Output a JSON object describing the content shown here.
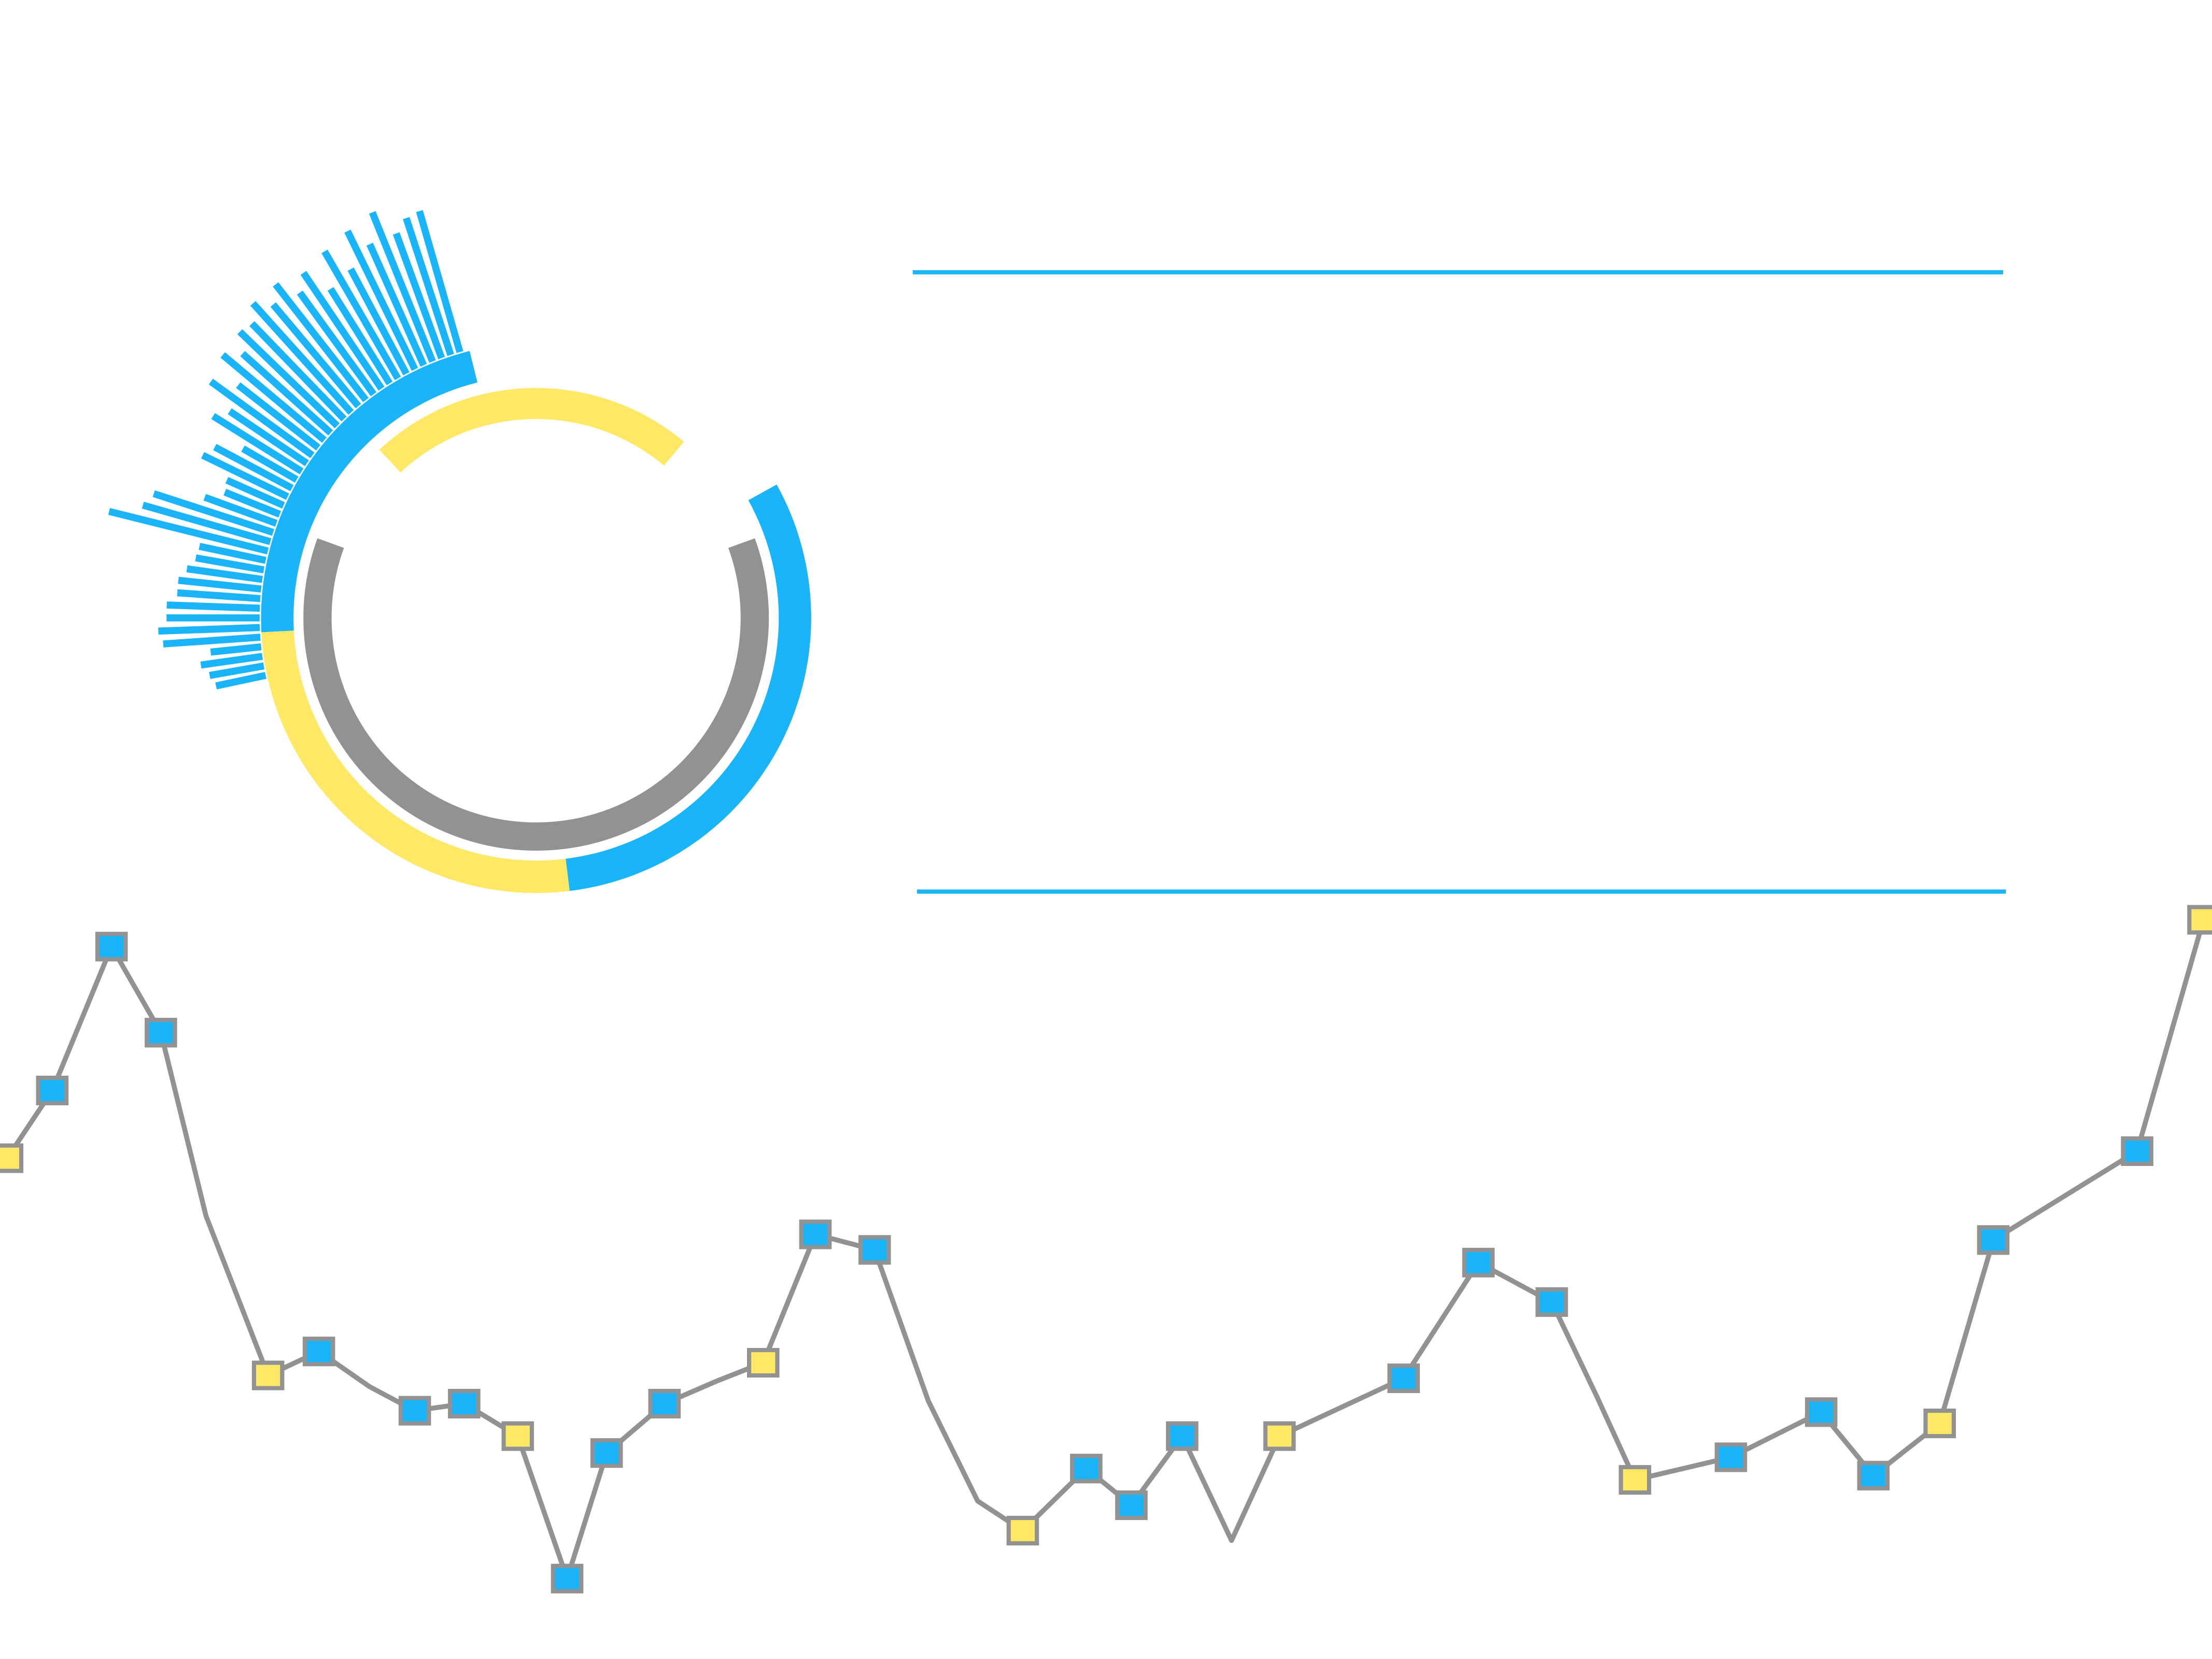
{
  "chart_data": [
    {
      "type": "radial-bar",
      "color": "#1ab4fa",
      "values": [
        36,
        39,
        44,
        36,
        69,
        72,
        66,
        66,
        59,
        59,
        54,
        49,
        48,
        116,
        94,
        89,
        54,
        42,
        44,
        67,
        62,
        44,
        74,
        66,
        89,
        72,
        94,
        84,
        96,
        94,
        104,
        94,
        104,
        89,
        99,
        79,
        104,
        84,
        109,
        94,
        114,
        94,
        102,
        104
      ]
    },
    {
      "type": "arcs",
      "series": [
        {
          "color": "#1ab4fa",
          "from": 104,
          "to": 183,
          "ring": "outer"
        },
        {
          "color": "#ffe866",
          "from": 183,
          "to": 277,
          "ring": "outer"
        },
        {
          "color": "#1ab4fa",
          "from": 277,
          "to": 389,
          "ring": "outer"
        },
        {
          "color": "#ffe866",
          "from": 50,
          "to": 133,
          "ring": "inner"
        },
        {
          "color": "#929292",
          "from": 160,
          "to": 380,
          "ring": "middle"
        }
      ]
    },
    {
      "type": "line",
      "color": "#929292",
      "x": [
        5,
        37,
        79,
        114,
        146,
        190,
        226,
        262,
        294,
        329,
        367,
        402,
        430,
        471,
        508,
        541,
        578,
        620,
        658,
        693,
        725,
        770,
        802,
        838,
        873,
        907,
        995,
        1048,
        1100,
        1132,
        1159,
        1227,
        1291,
        1328,
        1375,
        1413,
        1515,
        1562
      ],
      "values": [
        355,
        403,
        505,
        444,
        314,
        201,
        218,
        193,
        176,
        181,
        158,
        57,
        146,
        181,
        197,
        210,
        301,
        290,
        183,
        112,
        91,
        135,
        109,
        158,
        84,
        158,
        199,
        281,
        253,
        186,
        127,
        143,
        175,
        130,
        167,
        297,
        360,
        524
      ],
      "marker_colors": [
        "#ffe866",
        "#1ab4fa",
        "#1ab4fa",
        "#1ab4fa",
        null,
        "#ffe866",
        "#1ab4fa",
        null,
        "#1ab4fa",
        "#1ab4fa",
        "#ffe866",
        "#1ab4fa",
        "#1ab4fa",
        "#1ab4fa",
        null,
        "#ffe866",
        "#1ab4fa",
        "#1ab4fa",
        null,
        null,
        "#ffe866",
        "#1ab4fa",
        "#1ab4fa",
        "#1ab4fa",
        null,
        "#ffe866",
        "#1ab4fa",
        "#1ab4fa",
        "#1ab4fa",
        null,
        "#ffe866",
        "#1ab4fa",
        "#1ab4fa",
        "#1ab4fa",
        "#ffe866",
        "#1ab4fa",
        "#1ab4fa",
        "#ffe866"
      ],
      "xlim": [
        0,
        1568
      ],
      "ylim": [
        0,
        1176
      ]
    }
  ]
}
